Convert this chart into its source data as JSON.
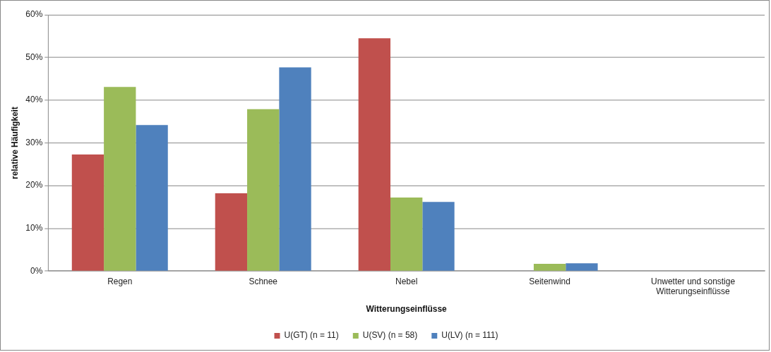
{
  "chart_data": {
    "type": "bar",
    "xlabel": "Witterungseinflüsse",
    "ylabel": "relative Häufigkeit",
    "categories": [
      "Regen",
      "Schnee",
      "Nebel",
      "Seitenwind",
      "Unwetter und sonstige Witterungseinflüsse"
    ],
    "series": [
      {
        "name": "U(GT) (n = 11)",
        "color": "#c0504d",
        "values": [
          27.3,
          18.2,
          54.5,
          0,
          0
        ]
      },
      {
        "name": "U(SV) (n = 58)",
        "color": "#9bbb59",
        "values": [
          43.1,
          37.9,
          17.2,
          1.7,
          0
        ]
      },
      {
        "name": "U(LV) (n = 111)",
        "color": "#4f81bd",
        "values": [
          34.2,
          47.7,
          16.2,
          1.8,
          0
        ]
      }
    ],
    "ylim": [
      0,
      60
    ],
    "yticks": [
      {
        "value": 0,
        "label": "0%"
      },
      {
        "value": 10,
        "label": "10%"
      },
      {
        "value": 20,
        "label": "20%"
      },
      {
        "value": 30,
        "label": "30%"
      },
      {
        "value": 40,
        "label": "40%"
      },
      {
        "value": 50,
        "label": "50%"
      },
      {
        "value": 60,
        "label": "60%"
      }
    ],
    "grid": "y",
    "legend": "bottom"
  }
}
